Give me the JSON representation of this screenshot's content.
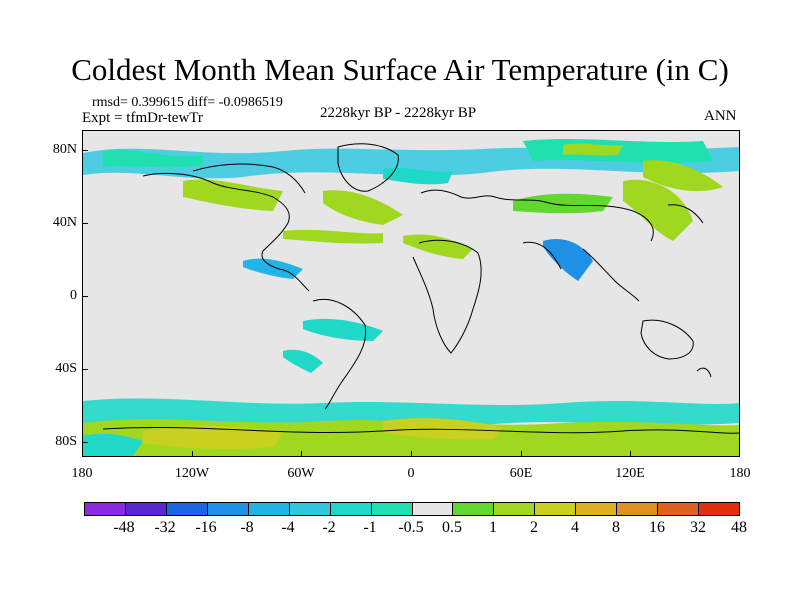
{
  "title": "Coldest Month Mean Surface Air Temperature (in C)",
  "stats": "rmsd= 0.399615  diff= -0.0986519",
  "expt": "Expt = tfmDr-tewTr",
  "period": "2228kyr BP - 2228kyr BP",
  "season": "ANN",
  "map": {
    "lat_ticks": [
      "80N",
      "40N",
      "0",
      "40S",
      "80S"
    ],
    "lon_ticks": [
      "180",
      "120W",
      "60W",
      "0",
      "60E",
      "120E",
      "180"
    ],
    "background_color": "#e6e6e6"
  },
  "colorbar": {
    "labels": [
      "-48",
      "-32",
      "-16",
      "-8",
      "-4",
      "-2",
      "-1",
      "-0.5",
      "0.5",
      "1",
      "2",
      "4",
      "8",
      "16",
      "32",
      "48"
    ],
    "colors": [
      "#8a2be2",
      "#5a28d0",
      "#1e64e6",
      "#1e90e6",
      "#20b4e8",
      "#30c8e0",
      "#20d8c8",
      "#20e0b0",
      "#e6e6e6",
      "#60d830",
      "#a0d820",
      "#c8d020",
      "#e0b020",
      "#e09020",
      "#e06020",
      "#e03010"
    ]
  }
}
